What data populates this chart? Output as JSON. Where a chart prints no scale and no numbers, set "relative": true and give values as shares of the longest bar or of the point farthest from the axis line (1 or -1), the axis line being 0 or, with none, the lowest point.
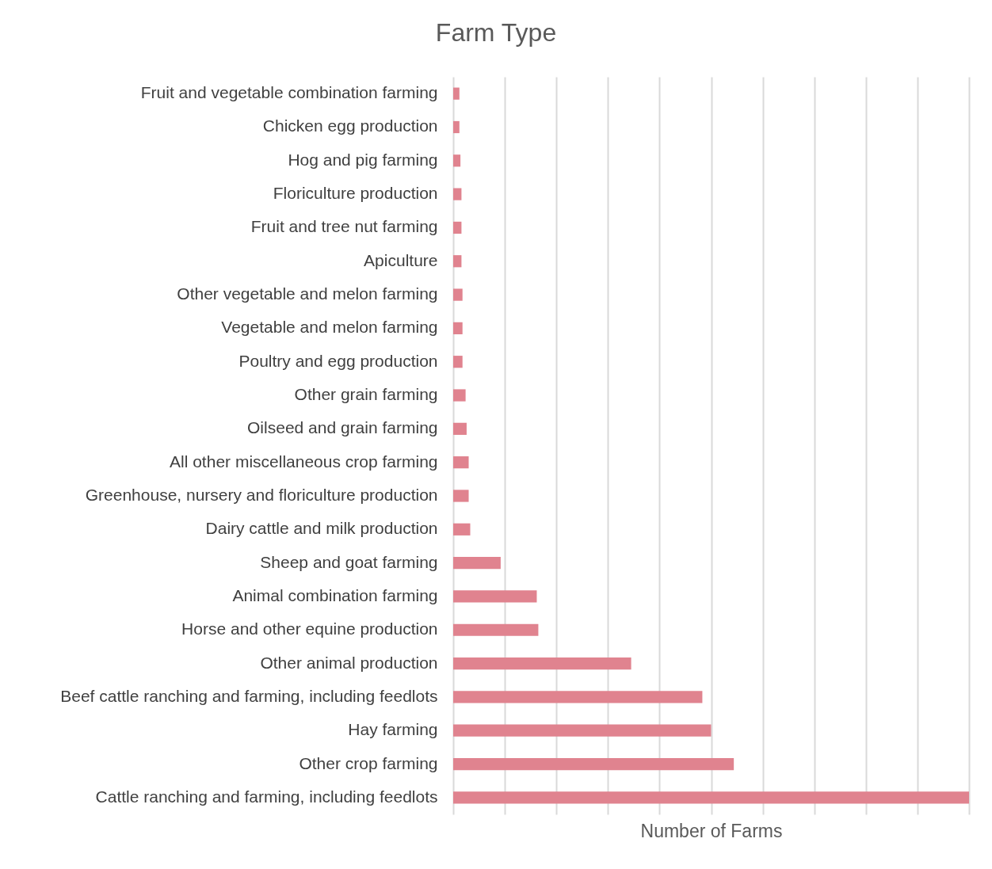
{
  "chart_data": {
    "type": "bar",
    "title": "Farm Type",
    "xlabel": "Number of Farms",
    "orientation": "horizontal",
    "relative": true,
    "grid": "x",
    "color": "#e0838f",
    "categories": [
      "Fruit and vegetable combination farming",
      "Chicken egg production",
      "Hog and pig farming",
      "Floriculture production",
      "Fruit and tree nut farming",
      "Apiculture",
      "Other vegetable and melon farming",
      "Vegetable and melon farming",
      "Poultry and egg production",
      "Other grain farming",
      "Oilseed and grain farming",
      "All other miscellaneous crop farming",
      "Greenhouse, nursery and floriculture production",
      "Dairy cattle and milk production",
      "Sheep and goat farming",
      "Animal combination farming",
      "Horse and other equine production",
      "Other animal production",
      "Beef cattle ranching and farming, including feedlots",
      "Hay farming",
      "Other crop farming",
      "Cattle ranching and farming, including feedlots"
    ],
    "values": [
      0.012,
      0.012,
      0.014,
      0.016,
      0.016,
      0.016,
      0.018,
      0.018,
      0.018,
      0.024,
      0.026,
      0.03,
      0.03,
      0.033,
      0.092,
      0.162,
      0.165,
      0.345,
      0.483,
      0.5,
      0.544,
      1
    ]
  }
}
